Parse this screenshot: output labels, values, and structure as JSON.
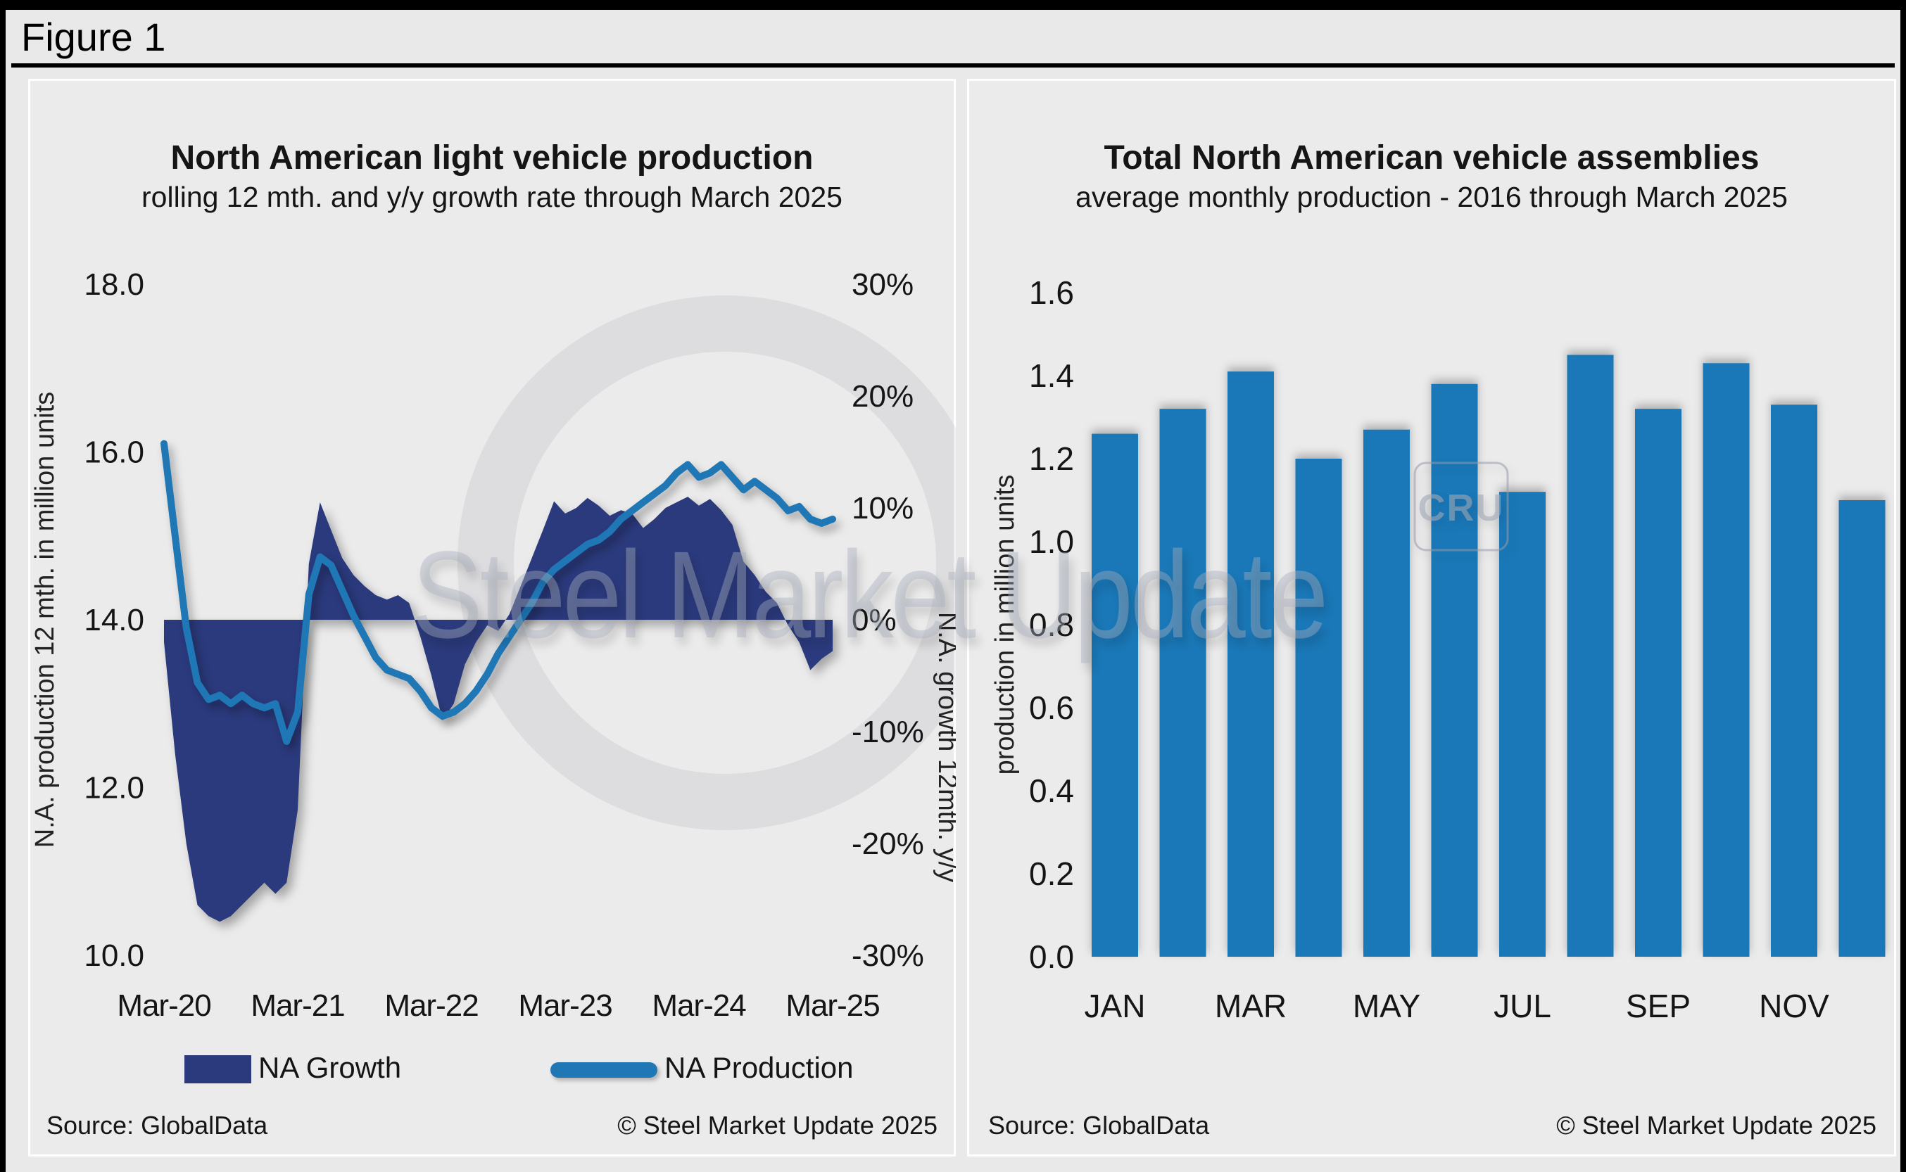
{
  "figure": {
    "title": "Figure 1"
  },
  "panels": {
    "left": {
      "title": "North American light vehicle production",
      "subtitle": "rolling 12 mth. and y/y growth rate through March 2025",
      "y_left_label": "N.A. production 12 mth. in million units",
      "y_right_label": "N.A. growth 12mth. y/y",
      "legend_growth": "NA Growth",
      "legend_production": "NA Production",
      "source": "Source: GlobalData",
      "copyright": "© Steel Market Update 2025"
    },
    "right": {
      "title": "Total North American vehicle assemblies",
      "subtitle": "average monthly production - 2016 through March 2025",
      "y_label": "production in million units",
      "source": "Source: GlobalData",
      "copyright": "© Steel Market Update 2025"
    }
  },
  "watermark": {
    "text": "Steel Market Update",
    "logo": "CRU"
  },
  "colors": {
    "area": "#2b3a7d",
    "line": "#1f77b5",
    "bar": "#1a78b8",
    "background": "#e9e9e9",
    "panel": "#ebebeb",
    "watermark": "#aab0c0"
  },
  "chart_data": [
    {
      "type": "area+line",
      "title": "North American light vehicle production",
      "subtitle": "rolling 12 mth. and y/y growth rate through March 2025",
      "x_start": "Mar-20",
      "x_end": "Mar-25",
      "x_step": "month",
      "xtick_labels": [
        "Mar-20",
        "Mar-21",
        "Mar-22",
        "Mar-23",
        "Mar-24",
        "Mar-25"
      ],
      "y_left": {
        "label": "N.A. production 12 mth. in million units",
        "ticks": [
          "18.0",
          "16.0",
          "14.0",
          "12.0",
          "10.0"
        ],
        "range": [
          10,
          18
        ]
      },
      "y_right": {
        "label": "N.A. growth 12mth. y/y",
        "ticks": [
          "30%",
          "20%",
          "10%",
          "0%",
          "-10%",
          "-20%",
          "-30%"
        ],
        "range": [
          -30,
          30
        ]
      },
      "legend_position": "bottom",
      "grid": false,
      "series": [
        {
          "name": "NA Growth",
          "type": "area",
          "axis": "right",
          "unit": "%",
          "values": [
            -2,
            -12,
            -20,
            -25.5,
            -26.5,
            -27,
            -26.5,
            -25.5,
            -24.5,
            -23.5,
            -24.5,
            -23.5,
            -17,
            5,
            10.5,
            8,
            5.5,
            4,
            3,
            2.2,
            1.8,
            2.2,
            1.5,
            -1.5,
            -5,
            -9,
            -7.5,
            -4,
            -2,
            -0.5,
            -1,
            0.5,
            3,
            5.5,
            8,
            10.6,
            9.5,
            10,
            10.9,
            10.2,
            9.3,
            9.8,
            9.5,
            8.2,
            9,
            10,
            10.5,
            11,
            10.2,
            10.8,
            9.8,
            8.5,
            5.2,
            4,
            2.5,
            1.5,
            -0.5,
            -2,
            -4.5,
            -3.5,
            -2.8
          ]
        },
        {
          "name": "NA Production",
          "type": "line",
          "axis": "left",
          "unit": "million units",
          "values": [
            16.1,
            15.0,
            13.9,
            13.25,
            13.05,
            13.1,
            13.0,
            13.1,
            13.0,
            12.95,
            13.0,
            12.55,
            12.9,
            14.3,
            14.75,
            14.65,
            14.35,
            14.05,
            13.8,
            13.55,
            13.4,
            13.35,
            13.3,
            13.15,
            12.95,
            12.85,
            12.9,
            13.0,
            13.15,
            13.35,
            13.6,
            13.8,
            14.0,
            14.2,
            14.45,
            14.6,
            14.7,
            14.8,
            14.9,
            14.95,
            15.05,
            15.2,
            15.3,
            15.4,
            15.5,
            15.6,
            15.75,
            15.85,
            15.7,
            15.75,
            15.85,
            15.7,
            15.55,
            15.65,
            15.55,
            15.45,
            15.3,
            15.35,
            15.2,
            15.15,
            15.2
          ]
        }
      ]
    },
    {
      "type": "bar",
      "title": "Total North American vehicle assemblies",
      "subtitle": "average monthly production - 2016 through March 2025",
      "categories": [
        "JAN",
        "FEB",
        "MAR",
        "APR",
        "MAY",
        "JUN",
        "JUL",
        "AUG",
        "SEP",
        "OCT",
        "NOV",
        "DEC"
      ],
      "xtick_labels": [
        "JAN",
        "MAR",
        "MAY",
        "JUL",
        "SEP",
        "NOV"
      ],
      "values": [
        1.26,
        1.32,
        1.41,
        1.2,
        1.27,
        1.38,
        1.12,
        1.45,
        1.32,
        1.43,
        1.33,
        1.1
      ],
      "xlabel": "",
      "ylabel": "production in million units",
      "yticks": [
        "1.6",
        "1.4",
        "1.2",
        "1.0",
        "0.8",
        "0.6",
        "0.4",
        "0.2",
        "0.0"
      ],
      "ylim": [
        0,
        1.6
      ],
      "grid": false,
      "legend_position": "none"
    }
  ]
}
